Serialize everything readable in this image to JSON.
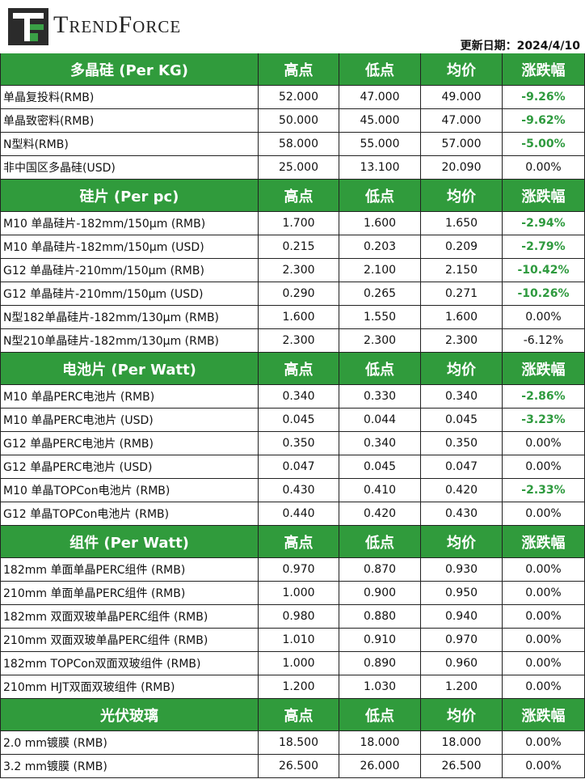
{
  "header": {
    "brand": "TrendForce",
    "update": "更新日期：2024/4/10"
  },
  "sections": [
    {
      "title": "多晶硅 (Per KG)",
      "columns": [
        "高点",
        "低点",
        "均价",
        "涨跌幅"
      ],
      "rows": [
        {
          "cells": [
            "单晶复投料(RMB)",
            "52.000",
            "47.000",
            "49.000",
            "-9.26%"
          ],
          "color": "#2e9a3e"
        },
        {
          "cells": [
            "单晶致密料(RMB)",
            "50.000",
            "45.000",
            "47.000",
            "-9.62%"
          ],
          "color": "#2e9a3e"
        },
        {
          "cells": [
            "N型料(RMB)",
            "58.000",
            "55.000",
            "57.000",
            "-5.00%"
          ],
          "color": "#2e9a3e"
        },
        {
          "cells": [
            "非中国区多晶硅(USD)",
            "25.000",
            "13.100",
            "20.090",
            "0.00%"
          ]
        }
      ]
    },
    {
      "title": "硅片 (Per pc)",
      "columns": [
        "高点",
        "低点",
        "均价",
        "涨跌幅"
      ],
      "rows": [
        {
          "cells": [
            "M10 单晶硅片-182mm/150μm (RMB)",
            "1.700",
            "1.600",
            "1.650",
            "-2.94%"
          ],
          "color": "#2e9a3e"
        },
        {
          "cells": [
            "M10 单晶硅片-182mm/150μm (USD)",
            "0.215",
            "0.203",
            "0.209",
            "-2.79%"
          ],
          "color": "#2e9a3e"
        },
        {
          "cells": [
            "G12 单晶硅片-210mm/150μm  (RMB)",
            "2.300",
            "2.100",
            "2.150",
            "-10.42%"
          ],
          "color": "#2e9a3e"
        },
        {
          "cells": [
            "G12 单晶硅片-210mm/150μm  (USD)",
            "0.290",
            "0.265",
            "0.271",
            "-10.26%"
          ],
          "color": "#2e9a3e"
        },
        {
          "cells": [
            "N型182单晶硅片-182mm/130μm (RMB)",
            "1.600",
            "1.550",
            "1.600",
            "0.00%"
          ]
        },
        {
          "cells": [
            "N型210单晶硅片-182mm/130μm (RMB)",
            "2.300",
            "2.300",
            "2.300",
            "-6.12%"
          ]
        }
      ]
    },
    {
      "title": "电池片 (Per Watt)",
      "columns": [
        "高点",
        "低点",
        "均价",
        "涨跌幅"
      ],
      "rows": [
        {
          "cells": [
            "M10 单晶PERC电池片 (RMB)",
            "0.340",
            "0.330",
            "0.340",
            "-2.86%"
          ],
          "color": "#2e9a3e"
        },
        {
          "cells": [
            "M10 单晶PERC电池片 (USD)",
            "0.045",
            "0.044",
            "0.045",
            "-3.23%"
          ],
          "color": "#2e9a3e"
        },
        {
          "cells": [
            "G12 单晶PERC电池片 (RMB)",
            "0.350",
            "0.340",
            "0.350",
            "0.00%"
          ]
        },
        {
          "cells": [
            "G12 单晶PERC电池片 (USD)",
            "0.047",
            "0.045",
            "0.047",
            "0.00%"
          ]
        },
        {
          "cells": [
            "M10 单晶TOPCon电池片 (RMB)",
            "0.430",
            "0.410",
            "0.420",
            "-2.33%"
          ],
          "color": "#2e9a3e"
        },
        {
          "cells": [
            "G12 单晶TOPCon电池片 (RMB)",
            "0.440",
            "0.420",
            "0.430",
            "0.00%"
          ]
        }
      ]
    },
    {
      "title": "组件 (Per Watt)",
      "columns": [
        "高点",
        "低点",
        "均价",
        "涨跌幅"
      ],
      "rows": [
        {
          "cells": [
            "182mm 单面单晶PERC组件 (RMB)",
            "0.970",
            "0.870",
            "0.930",
            "0.00%"
          ]
        },
        {
          "cells": [
            "210mm 单面单晶PERC组件 (RMB)",
            "1.000",
            "0.900",
            "0.950",
            "0.00%"
          ]
        },
        {
          "cells": [
            "182mm 双面双玻单晶PERC组件 (RMB)",
            "0.980",
            "0.880",
            "0.940",
            "0.00%"
          ]
        },
        {
          "cells": [
            "210mm 双面双玻单晶PERC组件 (RMB)",
            "1.010",
            "0.910",
            "0.970",
            "0.00%"
          ]
        },
        {
          "cells": [
            "182mm TOPCon双面双玻组件 (RMB)",
            "1.000",
            "0.890",
            "0.960",
            "0.00%"
          ]
        },
        {
          "cells": [
            "210mm HJT双面双玻组件 (RMB)",
            "1.200",
            "1.030",
            "1.200",
            "0.00%"
          ]
        }
      ]
    },
    {
      "title": "光伏玻璃",
      "columns": [
        "高点",
        "低点",
        "均价",
        "涨跌幅"
      ],
      "rows": [
        {
          "cells": [
            "2.0 mm镀膜 (RMB)",
            "18.500",
            "18.000",
            "18.000",
            "0.00%"
          ]
        },
        {
          "cells": [
            "3.2 mm镀膜 (RMB)",
            "26.500",
            "26.000",
            "26.500",
            "0.00%"
          ]
        }
      ]
    }
  ]
}
